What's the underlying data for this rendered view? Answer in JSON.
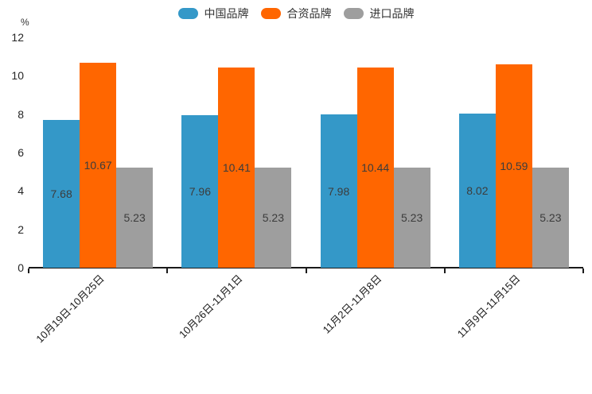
{
  "chart_data": {
    "type": "bar",
    "title": "",
    "unit_label": "%",
    "categories": [
      "10月19日-10月25日",
      "10月26日-11月1日",
      "11月2日-11月8日",
      "11月9日-11月15日"
    ],
    "series": [
      {
        "name": "中国品牌",
        "color": "#3498c8",
        "values": [
          7.68,
          7.96,
          7.98,
          8.02
        ]
      },
      {
        "name": "合资品牌",
        "color": "#ff6600",
        "values": [
          10.67,
          10.41,
          10.44,
          10.59
        ]
      },
      {
        "name": "进口品牌",
        "color": "#9e9e9e",
        "values": [
          5.23,
          5.23,
          5.23,
          5.23
        ]
      }
    ],
    "y_ticks": [
      0,
      2,
      4,
      6,
      8,
      10,
      12
    ],
    "ylim": [
      0,
      12
    ],
    "grid": false,
    "legend_position": "top",
    "value_labels": "inside-center",
    "value_label_color": "#3c3c3c",
    "axis_color": "#1a1a1a"
  }
}
